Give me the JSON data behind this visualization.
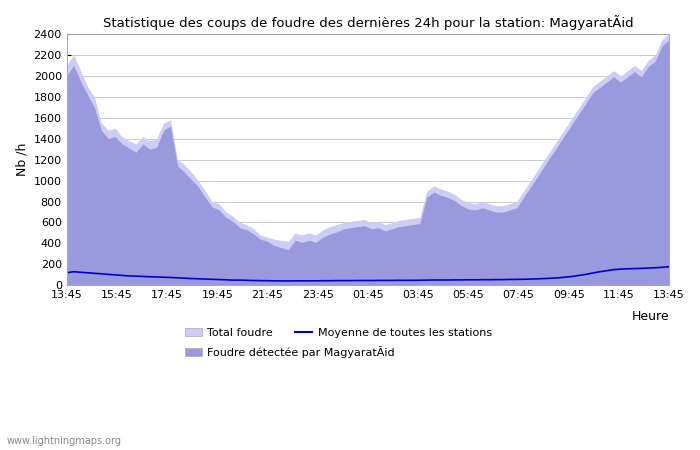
{
  "title": "Statistique des coups de foudre des dernières 24h pour la station: MagyaratÃid",
  "ylabel": "Nb /h",
  "xlabel": "Heure",
  "ylim": [
    0,
    2400
  ],
  "xtick_labels": [
    "13:45",
    "15:45",
    "17:45",
    "19:45",
    "21:45",
    "23:45",
    "01:45",
    "03:45",
    "05:45",
    "07:45",
    "09:45",
    "11:45",
    "13:45"
  ],
  "color_total": "#ccccf5",
  "color_detected": "#9999dd",
  "color_line": "#0000cc",
  "color_bg": "#ffffff",
  "color_grid": "#cccccc",
  "watermark": "www.lightningmaps.org",
  "legend_row1": [
    "Total foudre",
    "Moyenne de toutes les stations"
  ],
  "legend_row2": [
    "Foudre détectée par MagyaratÃid"
  ],
  "total_foudre": [
    2100,
    2200,
    2050,
    1900,
    1800,
    1550,
    1480,
    1500,
    1420,
    1380,
    1350,
    1420,
    1380,
    1400,
    1550,
    1580,
    1200,
    1150,
    1080,
    1000,
    900,
    800,
    780,
    700,
    660,
    600,
    580,
    540,
    480,
    460,
    440,
    430,
    420,
    500,
    480,
    500,
    480,
    530,
    560,
    580,
    600,
    610,
    620,
    630,
    600,
    610,
    580,
    600,
    620,
    630,
    640,
    650,
    900,
    950,
    920,
    900,
    870,
    820,
    790,
    780,
    800,
    780,
    760,
    760,
    780,
    800,
    900,
    1000,
    1100,
    1200,
    1300,
    1400,
    1500,
    1600,
    1700,
    1800,
    1900,
    1950,
    2000,
    2050,
    2000,
    2050,
    2100,
    2050,
    2150,
    2200,
    2350,
    2400
  ],
  "detected_foudre": [
    2000,
    2100,
    1950,
    1820,
    1700,
    1480,
    1400,
    1420,
    1350,
    1310,
    1270,
    1350,
    1300,
    1320,
    1480,
    1520,
    1140,
    1080,
    1010,
    940,
    840,
    750,
    720,
    650,
    610,
    550,
    530,
    490,
    440,
    420,
    380,
    360,
    340,
    430,
    410,
    430,
    410,
    460,
    490,
    510,
    540,
    550,
    560,
    570,
    540,
    550,
    520,
    540,
    560,
    570,
    580,
    590,
    840,
    890,
    860,
    840,
    810,
    760,
    730,
    720,
    740,
    720,
    700,
    700,
    720,
    740,
    840,
    940,
    1040,
    1140,
    1240,
    1340,
    1440,
    1540,
    1640,
    1740,
    1840,
    1890,
    1940,
    1990,
    1940,
    1990,
    2040,
    1990,
    2090,
    2140,
    2290,
    2340
  ],
  "moyenne_line": [
    120,
    130,
    125,
    120,
    115,
    110,
    105,
    100,
    95,
    90,
    88,
    85,
    82,
    80,
    78,
    75,
    72,
    68,
    65,
    63,
    60,
    58,
    55,
    53,
    50,
    50,
    48,
    46,
    45,
    44,
    43,
    42,
    42,
    43,
    43,
    43,
    43,
    44,
    44,
    45,
    45,
    45,
    46,
    46,
    46,
    47,
    47,
    47,
    48,
    48,
    48,
    49,
    50,
    51,
    51,
    51,
    52,
    52,
    53,
    53,
    54,
    54,
    55,
    55,
    56,
    57,
    58,
    60,
    62,
    65,
    68,
    72,
    78,
    85,
    95,
    105,
    118,
    130,
    140,
    150,
    155,
    158,
    160,
    162,
    165,
    168,
    172,
    178
  ]
}
